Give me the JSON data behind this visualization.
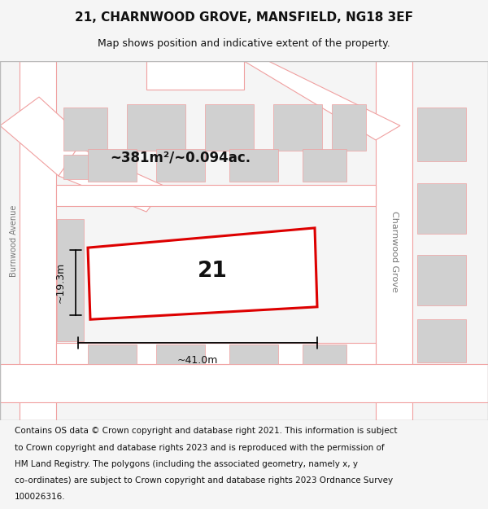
{
  "title": "21, CHARNWOOD GROVE, MANSFIELD, NG18 3EF",
  "subtitle": "Map shows position and indicative extent of the property.",
  "footer_lines": [
    "Contains OS data © Crown copyright and database right 2021. This information is subject",
    "to Crown copyright and database rights 2023 and is reproduced with the permission of",
    "HM Land Registry. The polygons (including the associated geometry, namely x, y",
    "co-ordinates) are subject to Crown copyright and database rights 2023 Ordnance Survey",
    "100026316."
  ],
  "area_label": "~381m²/~0.094ac.",
  "width_label": "~41.0m",
  "height_label": "~19.3m",
  "plot_number": "21",
  "street_label": "Charnwood Grove",
  "avenue_label": "Burnwood Avenue",
  "bg_color": "#f5f5f5",
  "map_bg": "#f0f0f0",
  "road_fill": "#ffffff",
  "plot_outline_color": "#dd0000",
  "building_fill": "#d0d0d0",
  "road_line_color": "#f0a0a0",
  "title_fontsize": 11,
  "subtitle_fontsize": 9,
  "footer_fontsize": 7.5
}
